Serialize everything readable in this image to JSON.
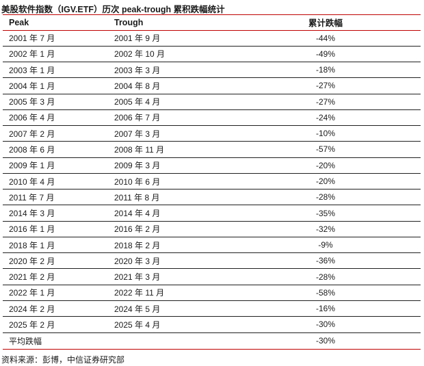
{
  "title": "美股软件指数（IGV.ETF）历次 peak-trough 累积跌幅统计",
  "colors": {
    "accent_red": "#bf0000",
    "row_divider": "#1f1f1f",
    "text": "#1a1a1a",
    "background": "#ffffff"
  },
  "table": {
    "columns": {
      "peak": "Peak",
      "trough": "Trough",
      "drawdown": "累计跌幅"
    },
    "rows": [
      {
        "peak": "2001 年 7 月",
        "trough": "2001 年 9 月",
        "drawdown": "-44%"
      },
      {
        "peak": "2002 年 1 月",
        "trough": "2002 年 10 月",
        "drawdown": "-49%"
      },
      {
        "peak": "2003 年 1 月",
        "trough": "2003 年 3 月",
        "drawdown": "-18%"
      },
      {
        "peak": "2004 年 1 月",
        "trough": "2004 年 8 月",
        "drawdown": "-27%"
      },
      {
        "peak": "2005 年 3 月",
        "trough": "2005 年 4 月",
        "drawdown": "-27%"
      },
      {
        "peak": "2006 年 4 月",
        "trough": "2006 年 7 月",
        "drawdown": "-24%"
      },
      {
        "peak": "2007 年 2 月",
        "trough": "2007 年 3 月",
        "drawdown": "-10%"
      },
      {
        "peak": "2008 年 6 月",
        "trough": "2008 年 11 月",
        "drawdown": "-57%"
      },
      {
        "peak": "2009 年 1 月",
        "trough": "2009 年 3 月",
        "drawdown": "-20%"
      },
      {
        "peak": "2010 年 4 月",
        "trough": "2010 年 6 月",
        "drawdown": "-20%"
      },
      {
        "peak": "2011 年 7 月",
        "trough": "2011 年 8 月",
        "drawdown": "-28%"
      },
      {
        "peak": "2014 年 3 月",
        "trough": "2014 年 4 月",
        "drawdown": "-35%"
      },
      {
        "peak": "2016 年 1 月",
        "trough": "2016 年 2 月",
        "drawdown": "-32%"
      },
      {
        "peak": "2018 年 1 月",
        "trough": "2018 年 2 月",
        "drawdown": "-9%"
      },
      {
        "peak": "2020 年 2 月",
        "trough": "2020 年 3 月",
        "drawdown": "-36%"
      },
      {
        "peak": "2021 年 2 月",
        "trough": "2021 年 3 月",
        "drawdown": "-28%"
      },
      {
        "peak": "2022 年 1 月",
        "trough": "2022 年 11 月",
        "drawdown": "-58%"
      },
      {
        "peak": "2024 年 2 月",
        "trough": "2024 年 5 月",
        "drawdown": "-16%"
      },
      {
        "peak": "2025 年 2 月",
        "trough": "2025 年 4 月",
        "drawdown": "-30%"
      },
      {
        "peak": "平均跌幅",
        "trough": "",
        "drawdown": "-30%"
      }
    ]
  },
  "footer": {
    "source": "资料来源：彭博，中信证券研究部"
  }
}
